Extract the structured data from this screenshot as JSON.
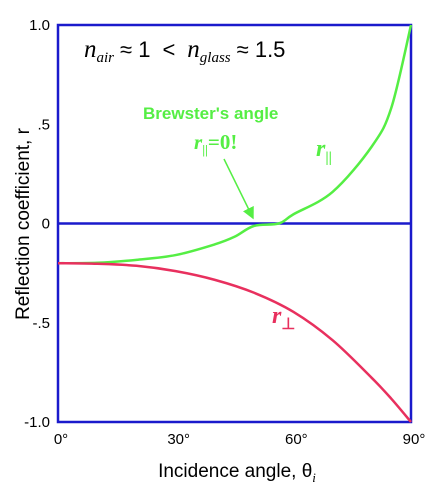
{
  "chart_data": {
    "type": "line",
    "title": "",
    "xlabel": "Incidence angle, θ",
    "xlabel_subscript": "i",
    "ylabel": "Reflection coefficient, r",
    "xlim": [
      0,
      90
    ],
    "ylim": [
      -1.0,
      1.0
    ],
    "xticks": [
      {
        "value": 0,
        "label": "0°"
      },
      {
        "value": 30,
        "label": "30°"
      },
      {
        "value": 60,
        "label": "60°"
      },
      {
        "value": 90,
        "label": "90°"
      }
    ],
    "yticks": [
      {
        "value": 1.0,
        "label": "1.0"
      },
      {
        "value": 0.5,
        "label": ".5"
      },
      {
        "value": 0,
        "label": "0"
      },
      {
        "value": -0.5,
        "label": "-.5"
      },
      {
        "value": -1.0,
        "label": "-1.0"
      }
    ],
    "grid": false,
    "zero_line": true,
    "colors": {
      "frame": "#1a1acc",
      "parallel": "#55ee44",
      "perpendicular": "#e8305e",
      "zero_line": "#1a1acc"
    },
    "series": [
      {
        "name": "r∥",
        "color": "#55ee44",
        "x": [
          0,
          10,
          20,
          30,
          40,
          45,
          50,
          56.3,
          60,
          70,
          80,
          85,
          90
        ],
        "values": [
          -0.2,
          -0.198,
          -0.183,
          -0.159,
          -0.105,
          -0.067,
          -0.012,
          0.0,
          0.046,
          0.159,
          0.388,
          0.584,
          1.0
        ]
      },
      {
        "name": "r⊥",
        "color": "#e8305e",
        "x": [
          0,
          10,
          20,
          30,
          40,
          50,
          60,
          70,
          80,
          85,
          90
        ],
        "values": [
          -0.2,
          -0.203,
          -0.213,
          -0.24,
          -0.284,
          -0.349,
          -0.445,
          -0.588,
          -0.778,
          -0.883,
          -1.0
        ]
      }
    ],
    "annotations": {
      "media": {
        "n_air_symbol": "n",
        "air_sub": "air",
        "approx1": "≈ 1",
        "less": "<",
        "n_glass_symbol": "n",
        "glass_sub": "glass",
        "approx2": "≈ 1.5"
      },
      "brewster_title": "Brewster's angle",
      "brewster_eq_r": "r",
      "brewster_eq_sub": "||",
      "brewster_eq_rest": "=0!",
      "par_label_r": "r",
      "par_label_sub": "||",
      "perp_label_r": "r",
      "perp_label_sub": "⊥"
    }
  }
}
